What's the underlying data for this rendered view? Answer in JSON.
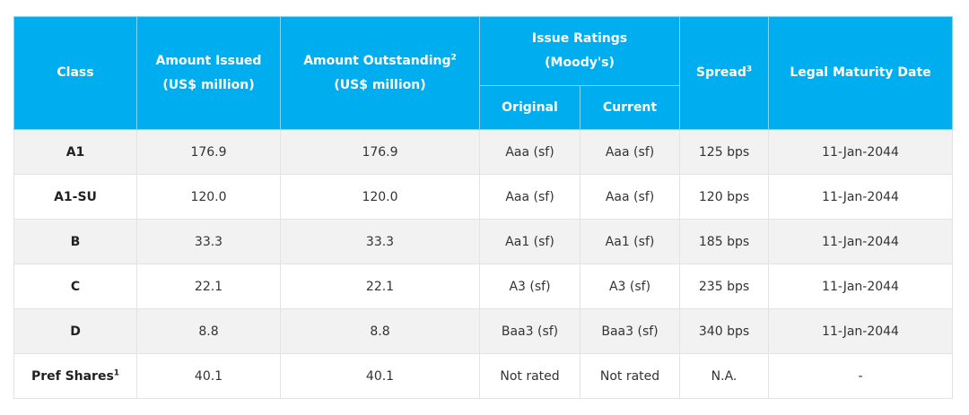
{
  "header": {
    "class": "Class",
    "amount_issued": "Amount Issued",
    "amount_issued_unit": "(US$ million)",
    "amount_outstanding": "Amount Outstanding",
    "amount_outstanding_note": "2",
    "amount_outstanding_unit": "(US$ million)",
    "issue_ratings": "Issue Ratings",
    "issue_ratings_sub": "(Moody's)",
    "original": "Original",
    "current": "Current",
    "spread": "Spread",
    "spread_note": "3",
    "legal_maturity": "Legal Maturity Date"
  },
  "rows": [
    {
      "class": "A1",
      "note": "",
      "issued": "176.9",
      "outstanding": "176.9",
      "original": "Aaa (sf)",
      "current": "Aaa (sf)",
      "spread": "125 bps",
      "maturity": "11-Jan-2044"
    },
    {
      "class": "A1-SU",
      "note": "",
      "issued": "120.0",
      "outstanding": "120.0",
      "original": "Aaa (sf)",
      "current": "Aaa (sf)",
      "spread": "120 bps",
      "maturity": "11-Jan-2044"
    },
    {
      "class": "B",
      "note": "",
      "issued": "33.3",
      "outstanding": "33.3",
      "original": "Aa1 (sf)",
      "current": "Aa1 (sf)",
      "spread": "185 bps",
      "maturity": "11-Jan-2044"
    },
    {
      "class": "C",
      "note": "",
      "issued": "22.1",
      "outstanding": "22.1",
      "original": "A3 (sf)",
      "current": "A3 (sf)",
      "spread": "235 bps",
      "maturity": "11-Jan-2044"
    },
    {
      "class": "D",
      "note": "",
      "issued": "8.8",
      "outstanding": "8.8",
      "original": "Baa3 (sf)",
      "current": "Baa3 (sf)",
      "spread": "340 bps",
      "maturity": "11-Jan-2044"
    },
    {
      "class": "Pref Shares",
      "note": "1",
      "issued": "40.1",
      "outstanding": "40.1",
      "original": "Not rated",
      "current": "Not rated",
      "spread": "N.A.",
      "maturity": "-"
    }
  ],
  "colors": {
    "header_bg": "#00aeef",
    "header_text": "#ffffff",
    "row_alt_bg": "#f2f2f2"
  }
}
